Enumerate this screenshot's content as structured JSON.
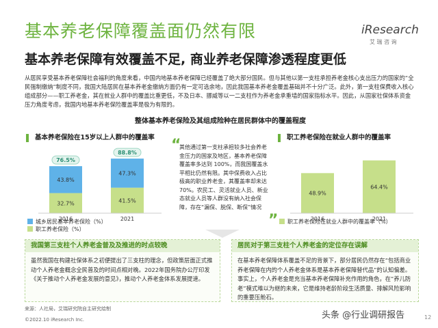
{
  "header": {
    "title": "基本养老保障覆盖面仍然有限",
    "subtitle": "基本养老保障有效覆盖不足, 商业养老保障渗透程度更低",
    "logo": "iResearch",
    "logo_sub": "艾 瑞 咨 询"
  },
  "intro": "从居民享受基本养老保障社会福利的角度来看，中国内地基本养老保障已经覆盖了绝大部分国民。但与其他以第一支柱承担养老金核心支出压力的国家的“全民强制缴纳”制度不同，我国大陆居民在基本养老金缴纳方面仍有一定可选余地，因此我国基本养老金覆盖基础并不十分广泛。此外，第一支柱保费收入核心组成部分——职工养老金，其在就业人群中的覆盖比重更低，不及日本、挪威等以一二支柱作为养老金承重墙的国家指标水平。因此，从国家社保体系资金压力角度考虑，我国内地基本养老保险覆盖率是极为有限的。",
  "section_title": "整体基本养老保险及其组成险种在居民群体中的覆盖程度",
  "charts": [
    {
      "type": "stacked_bar",
      "title": "基本养老保险在15岁以上人群中的覆盖率",
      "categories": [
        "2016",
        "2021"
      ],
      "series": [
        {
          "name": "城乡居民基本养老保险（%）",
          "color": "#5fb2e8",
          "values": [
            43.8,
            47.3
          ],
          "value_labels": [
            "43.8%",
            "47.3%"
          ]
        },
        {
          "name": "职工养老保险（%）",
          "color": "#c6df8a",
          "values": [
            32.7,
            41.5
          ],
          "value_labels": [
            "32.7%",
            "41.5%"
          ]
        }
      ],
      "totals": [
        76.5,
        88.8
      ],
      "total_labels": [
        "76.5%",
        "88.8%"
      ]
    },
    {
      "type": "bar",
      "title": "职工养老保险在就业人群中的覆盖率",
      "categories": [
        "2016",
        "2021"
      ],
      "series": [
        {
          "name": "职工养老保险在就业人群中的覆盖率（%）",
          "color": "#c6df8a",
          "values": [
            48.9,
            64.4
          ],
          "value_labels": [
            "48.9%",
            "64.4%"
          ]
        }
      ]
    }
  ],
  "note": "其他通过第一支柱承担较多社会养老金压力的国家及地区，基本养老保障覆盖率多达到 100%，而我国覆盖水平相比仍然有限。其中保费收入占比极高的职业养老金，其覆盖率却未达70%。农民工、灵活就业人员、新业态就业人员等人群没有纳入社会保障，存在“漏保、脱保、断保”情况",
  "boxes": [
    {
      "title": "我国第三支柱个人养老金普及及推进的时点较晚",
      "text": "虽然我国在构建社保体系之初便提出了三支柱的理念，但政策层面正式推动个人养老金概念全民普及的时间点相对晚。2022年国务院办公厅印发《关于推动个人养老金发展的意见》，推动个人养老金体系发展提速。"
    },
    {
      "title": "居民对于第三支柱个人养老金的定位存在误解",
      "text": "在基本养老保障体系覆盖不足的背景下，部分居民仍然存在“包括商业养老保障在内的个人养老金体系是基本养老保障替代品”的认知偏差。事实上，个人养老金是充当基本养老保障补充作用的角色，在“养儿防老”模式难以为继的未来，它是维持老龄阶段生活质量、排解风险影响的重要压舱石。"
    }
  ],
  "footer": {
    "source": "来源：人社局，艾瑞研究院自主研究绘制",
    "copyright": "©2022.10 iResearch Inc.",
    "watermark": "头条 @行业调研报告",
    "page": "12"
  }
}
